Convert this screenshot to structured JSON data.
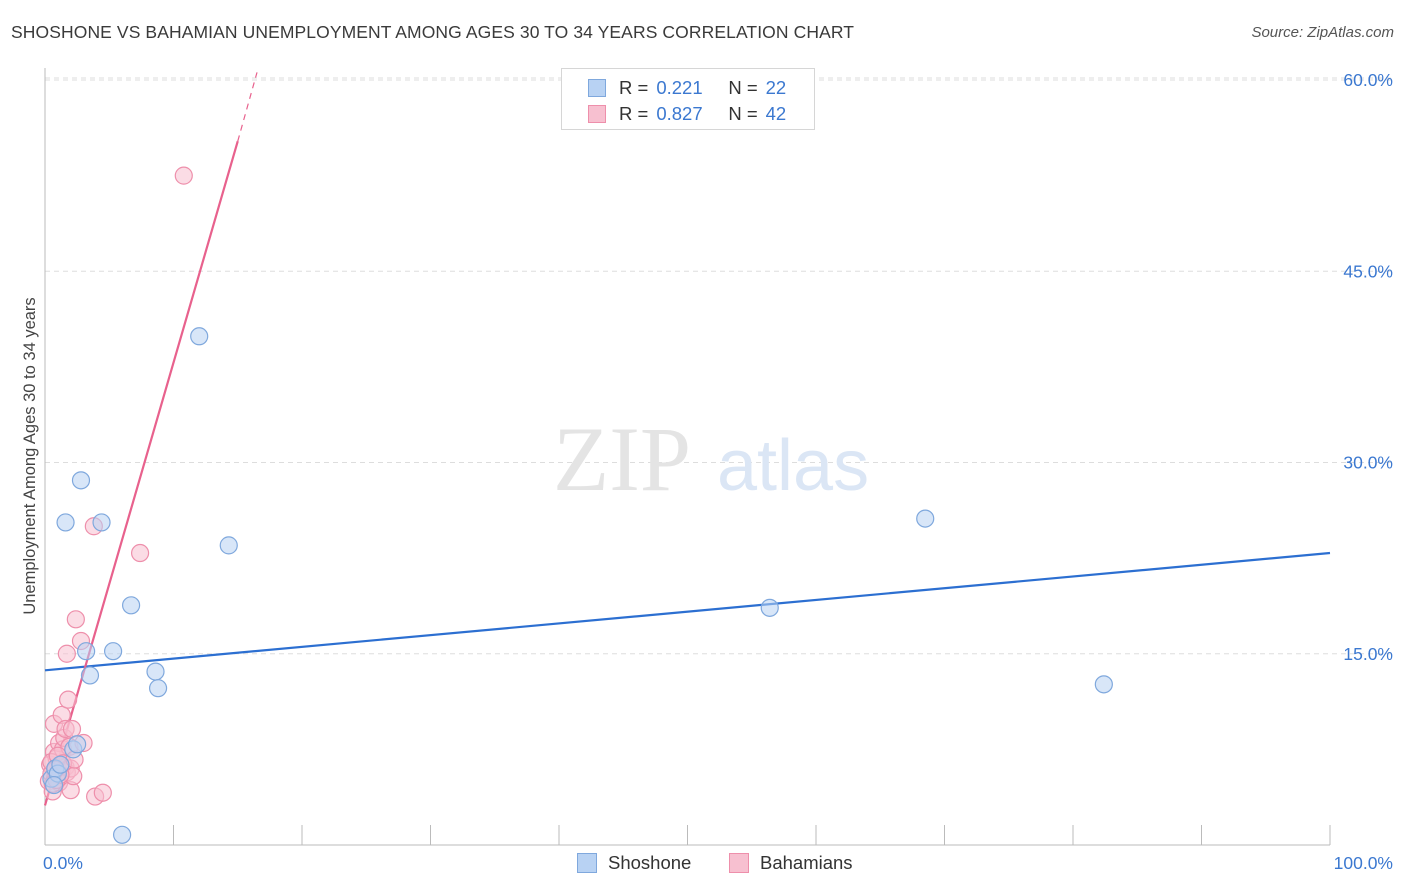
{
  "title": "SHOSHONE VS BAHAMIAN UNEMPLOYMENT AMONG AGES 30 TO 34 YEARS CORRELATION CHART",
  "source": "Source: ZipAtlas.com",
  "watermark": {
    "zip": "ZIP",
    "atlas": "atlas"
  },
  "legend": {
    "r_label": "R =",
    "n_label": "N =",
    "rows": [
      {
        "series": "Shoshone",
        "r": "0.221",
        "n": "22"
      },
      {
        "series": "Bahamians",
        "r": "0.827",
        "n": "42"
      }
    ]
  },
  "colors": {
    "shoshone_fill": "#b8d2f3",
    "shoshone_stroke": "#7fa8dd",
    "shoshone_line": "#2c6fd1",
    "bahamians_fill": "#f7c0d0",
    "bahamians_stroke": "#ee8fab",
    "bahamians_line": "#e8618d",
    "tick_text": "#3b78d0",
    "grid": "#dddddd"
  },
  "chart_data": {
    "type": "scatter",
    "title": "SHOSHONE VS BAHAMIAN UNEMPLOYMENT AMONG AGES 30 TO 34 YEARS CORRELATION CHART",
    "xlabel": "",
    "ylabel": "Unemployment Among Ages 30 to 34 years",
    "xlim": [
      0,
      100
    ],
    "ylim": [
      0,
      62
    ],
    "x_tick_labels": [
      "0.0%",
      "100.0%"
    ],
    "y_ticks": [
      15,
      30,
      45,
      60
    ],
    "y_tick_labels": [
      "15.0%",
      "30.0%",
      "45.0%",
      "60.0%"
    ],
    "grid": true,
    "series": [
      {
        "name": "Shoshone",
        "r": 0.221,
        "n": 22,
        "points": [
          [
            0.5,
            5.2
          ],
          [
            0.8,
            6.0
          ],
          [
            1.0,
            5.6
          ],
          [
            1.2,
            6.3
          ],
          [
            1.6,
            25.3
          ],
          [
            2.2,
            7.5
          ],
          [
            2.5,
            7.9
          ],
          [
            2.8,
            28.6
          ],
          [
            3.2,
            15.2
          ],
          [
            3.5,
            13.3
          ],
          [
            4.4,
            25.3
          ],
          [
            5.3,
            15.2
          ],
          [
            6.0,
            0.8
          ],
          [
            6.7,
            18.8
          ],
          [
            8.6,
            13.6
          ],
          [
            8.8,
            12.3
          ],
          [
            12.0,
            39.9
          ],
          [
            14.3,
            23.5
          ],
          [
            56.4,
            18.6
          ],
          [
            68.5,
            25.6
          ],
          [
            82.4,
            12.6
          ],
          [
            0.7,
            4.7
          ]
        ],
        "trend": {
          "x0": 0,
          "y0": 13.7,
          "x1": 100,
          "y1": 22.9
        }
      },
      {
        "name": "Bahamians",
        "r": 0.827,
        "n": 42,
        "points": [
          [
            0.3,
            5.0
          ],
          [
            0.4,
            6.3
          ],
          [
            0.5,
            5.6
          ],
          [
            0.6,
            4.2
          ],
          [
            0.7,
            7.3
          ],
          [
            0.7,
            9.5
          ],
          [
            0.8,
            5.3
          ],
          [
            0.9,
            6.8
          ],
          [
            1.0,
            5.9
          ],
          [
            1.1,
            4.9
          ],
          [
            1.1,
            8.0
          ],
          [
            1.2,
            6.2
          ],
          [
            1.3,
            5.8
          ],
          [
            1.3,
            10.2
          ],
          [
            1.4,
            7.5
          ],
          [
            1.5,
            8.4
          ],
          [
            1.6,
            6.1
          ],
          [
            1.6,
            9.1
          ],
          [
            1.7,
            5.7
          ],
          [
            1.7,
            15.0
          ],
          [
            1.8,
            11.4
          ],
          [
            1.9,
            7.7
          ],
          [
            2.0,
            4.3
          ],
          [
            2.0,
            6.0
          ],
          [
            2.1,
            9.1
          ],
          [
            2.2,
            5.4
          ],
          [
            2.4,
            17.7
          ],
          [
            2.8,
            16.0
          ],
          [
            3.0,
            8.0
          ],
          [
            3.8,
            25.0
          ],
          [
            3.9,
            3.8
          ],
          [
            4.5,
            4.1
          ],
          [
            7.4,
            22.9
          ],
          [
            10.8,
            52.5
          ],
          [
            0.5,
            6.5
          ],
          [
            0.6,
            4.8
          ],
          [
            0.9,
            5.1
          ],
          [
            1.0,
            7.0
          ],
          [
            1.2,
            5.5
          ],
          [
            1.4,
            6.4
          ],
          [
            2.3,
            6.7
          ],
          [
            0.8,
            5.9
          ]
        ],
        "trend": {
          "x0": 0,
          "y0": 3.1,
          "x1": 15.0,
          "y1": 55.2
        },
        "trend_extension": {
          "x0": 15.0,
          "y0": 55.2,
          "x1": 16.5,
          "y1": 60.6
        }
      }
    ]
  },
  "bottom_legend": [
    "Shoshone",
    "Bahamians"
  ]
}
